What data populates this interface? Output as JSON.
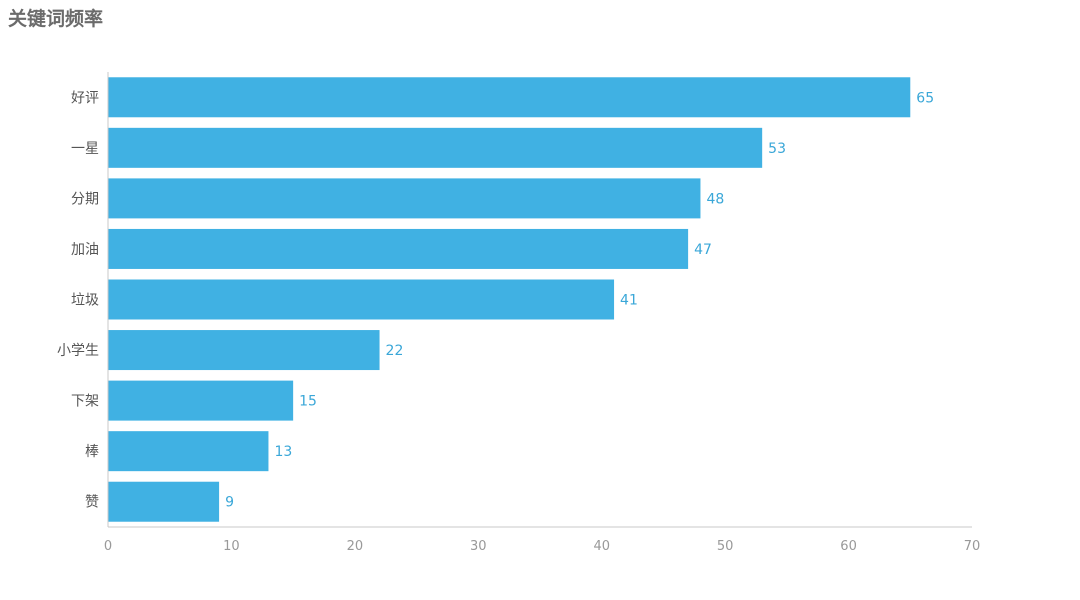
{
  "title": "关键词频率",
  "colors": {
    "bar": "#40b1e3",
    "data_label": "#3aa7d8",
    "axis": "#c8c8c8"
  },
  "chart_data": {
    "type": "bar",
    "orientation": "horizontal",
    "title": "关键词频率",
    "xlabel": "",
    "ylabel": "",
    "categories": [
      "好评",
      "一星",
      "分期",
      "加油",
      "垃圾",
      "小学生",
      "下架",
      "棒",
      "赞"
    ],
    "values": [
      65,
      53,
      48,
      47,
      41,
      22,
      15,
      13,
      9
    ],
    "xlim": [
      0,
      70
    ],
    "xticks": [
      0,
      10,
      20,
      30,
      40,
      50,
      60,
      70
    ],
    "grid": false,
    "data_labels": true
  }
}
